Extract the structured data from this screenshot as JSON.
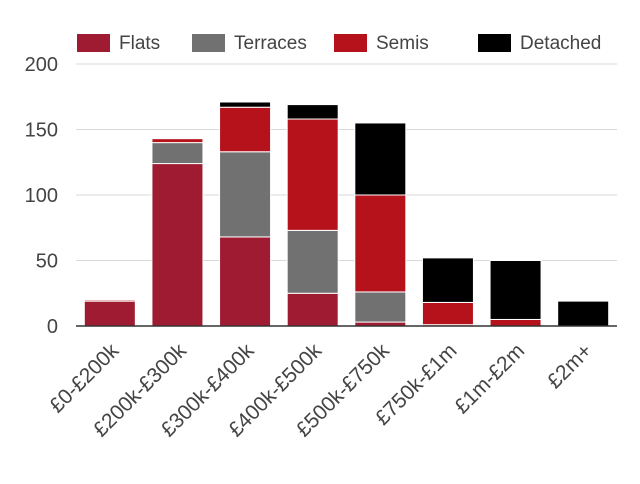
{
  "chart_data": {
    "type": "bar",
    "stacked": true,
    "categories": [
      "£0-£200k",
      "£200k-£300k",
      "£300k-£400k",
      "£400k-£500k",
      "£500k-£750k",
      "£750k-£1m",
      "£1m-£2m",
      "£2m+"
    ],
    "series": [
      {
        "name": "Flats",
        "color": "#9e1b32",
        "values": [
          19,
          124,
          68,
          25,
          3,
          1,
          0,
          0
        ]
      },
      {
        "name": "Terraces",
        "color": "#717171",
        "values": [
          0,
          16,
          65,
          48,
          23,
          0,
          0,
          0
        ]
      },
      {
        "name": "Semis",
        "color": "#b5121b",
        "values": [
          1,
          3,
          34,
          85,
          74,
          17,
          5,
          0
        ]
      },
      {
        "name": "Detached",
        "color": "#000000",
        "values": [
          0,
          0,
          4,
          11,
          55,
          34,
          45,
          19
        ]
      }
    ],
    "ylim": [
      0,
      200
    ],
    "yticks": [
      0,
      50,
      100,
      150,
      200
    ],
    "grid": true,
    "legend_position": "top"
  }
}
